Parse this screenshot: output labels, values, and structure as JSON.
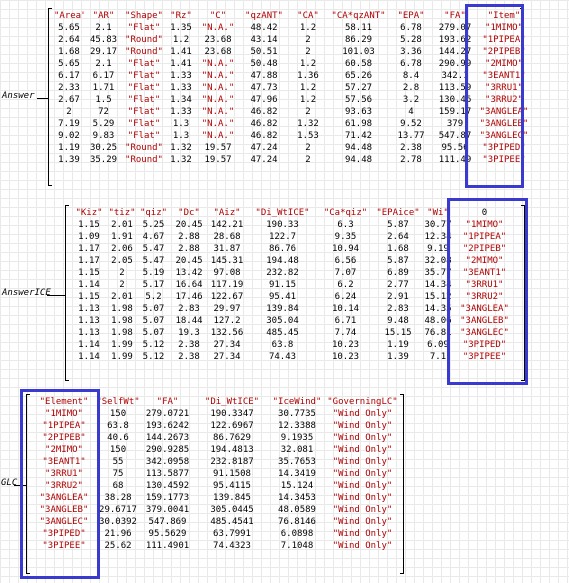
{
  "answer": {
    "label": "Answer",
    "headers": [
      "\"Area\"",
      "\"AR\"",
      "\"Shape\"",
      "\"Rz\"",
      "\"C\"",
      "\"qzANT\"",
      "\"CA\"",
      "\"CA*qzANT\"",
      "\"EPA\"",
      "\"FA\"",
      "\"Item\""
    ],
    "rows": [
      [
        "5.65",
        "2.1",
        "\"Flat\"",
        "1.35",
        "\"N.A.\"",
        "48.42",
        "1.2",
        "58.11",
        "6.78",
        "279.07",
        "\"1MIMO\""
      ],
      [
        "2.64",
        "45.83",
        "\"Round\"",
        "1.2",
        "23.68",
        "43.14",
        "2",
        "86.29",
        "5.28",
        "193.62",
        "\"1PIPEA\""
      ],
      [
        "1.68",
        "29.17",
        "\"Round\"",
        "1.41",
        "23.68",
        "50.51",
        "2",
        "101.03",
        "3.36",
        "144.27",
        "\"2PIPEB\""
      ],
      [
        "5.65",
        "2.1",
        "\"Flat\"",
        "1.41",
        "\"N.A.\"",
        "50.48",
        "1.2",
        "60.58",
        "6.78",
        "290.99",
        "\"2MIMO\""
      ],
      [
        "6.17",
        "6.17",
        "\"Flat\"",
        "1.33",
        "\"N.A.\"",
        "47.88",
        "1.36",
        "65.26",
        "8.4",
        "342.1",
        "\"3EANT1\""
      ],
      [
        "2.33",
        "1.71",
        "\"Flat\"",
        "1.33",
        "\"N.A.\"",
        "47.73",
        "1.2",
        "57.27",
        "2.8",
        "113.59",
        "\"3RRU1\""
      ],
      [
        "2.67",
        "1.5",
        "\"Flat\"",
        "1.34",
        "\"N.A.\"",
        "47.96",
        "1.2",
        "57.56",
        "3.2",
        "130.46",
        "\"3RRU2\""
      ],
      [
        "2",
        "72",
        "\"Flat\"",
        "1.33",
        "\"N.A.\"",
        "46.82",
        "2",
        "93.63",
        "4",
        "159.17",
        "\"3ANGLEA\""
      ],
      [
        "7.19",
        "5.29",
        "\"Flat\"",
        "1.3",
        "\"N.A.\"",
        "46.82",
        "1.32",
        "61.98",
        "9.52",
        "379",
        "\"3ANGLEB\""
      ],
      [
        "9.02",
        "9.83",
        "\"Flat\"",
        "1.3",
        "\"N.A.\"",
        "46.82",
        "1.53",
        "71.42",
        "13.77",
        "547.87",
        "\"3ANGLEC\""
      ],
      [
        "1.19",
        "30.25",
        "\"Round\"",
        "1.32",
        "19.57",
        "47.24",
        "2",
        "94.48",
        "2.38",
        "95.56",
        "\"3PIPED\""
      ],
      [
        "1.39",
        "35.29",
        "\"Round\"",
        "1.32",
        "19.57",
        "47.24",
        "2",
        "94.48",
        "2.78",
        "111.49",
        "\"3PIPEE\""
      ]
    ]
  },
  "answer_ice": {
    "label": "AnswerICE",
    "headers": [
      "\"Kiz\"",
      "\"tiz\"",
      "\"qiz\"",
      "\"Dc\"",
      "\"Aiz\"",
      "\"Di_WtICE\"",
      "\"Ca*qiz\"",
      "\"EPAice\"",
      "\"Wi\"",
      "0"
    ],
    "rows": [
      [
        "1.15",
        "2.01",
        "5.25",
        "20.45",
        "142.21",
        "190.33",
        "6.3",
        "5.87",
        "30.77",
        "\"1MIMO\""
      ],
      [
        "1.09",
        "1.91",
        "4.67",
        "2.88",
        "28.68",
        "122.7",
        "9.35",
        "2.64",
        "12.34",
        "\"1PIPEA\""
      ],
      [
        "1.17",
        "2.06",
        "5.47",
        "2.88",
        "31.87",
        "86.76",
        "10.94",
        "1.68",
        "9.19",
        "\"2PIPEB\""
      ],
      [
        "1.17",
        "2.05",
        "5.47",
        "20.45",
        "145.31",
        "194.48",
        "6.56",
        "5.87",
        "32.08",
        "\"2MIMO\""
      ],
      [
        "1.15",
        "2",
        "5.19",
        "13.42",
        "97.08",
        "232.82",
        "7.07",
        "6.89",
        "35.77",
        "\"3EANT1\""
      ],
      [
        "1.14",
        "2",
        "5.17",
        "16.64",
        "117.19",
        "91.15",
        "6.2",
        "2.77",
        "14.34",
        "\"3RRU1\""
      ],
      [
        "1.15",
        "2.01",
        "5.2",
        "17.46",
        "122.67",
        "95.41",
        "6.24",
        "2.91",
        "15.12",
        "\"3RRU2\""
      ],
      [
        "1.13",
        "1.98",
        "5.07",
        "2.83",
        "29.97",
        "139.84",
        "10.14",
        "2.83",
        "14.35",
        "\"3ANGLEA\""
      ],
      [
        "1.13",
        "1.98",
        "5.07",
        "18.44",
        "127.2",
        "305.04",
        "6.71",
        "9.48",
        "48.06",
        "\"3ANGLEB\""
      ],
      [
        "1.13",
        "1.98",
        "5.07",
        "19.3",
        "132.56",
        "485.45",
        "7.74",
        "15.15",
        "76.81",
        "\"3ANGLEC\""
      ],
      [
        "1.14",
        "1.99",
        "5.12",
        "2.38",
        "27.34",
        "63.8",
        "10.23",
        "1.19",
        "6.09",
        "\"3PIPED\""
      ],
      [
        "1.14",
        "1.99",
        "5.12",
        "2.38",
        "27.34",
        "74.43",
        "10.23",
        "1.39",
        "7.1",
        "\"3PIPEE\""
      ]
    ]
  },
  "glc": {
    "label": "GLC",
    "headers": [
      "\"Element\"",
      "\"SelfWt\"",
      "\"FA\"",
      "\"Di_WtICE\"",
      "\"IceWind\"",
      "\"GoverningLC\""
    ],
    "rows": [
      [
        "\"1MIMO\"",
        "150",
        "279.0721",
        "190.3347",
        "30.7735",
        "\"Wind Only\""
      ],
      [
        "\"1PIPEA\"",
        "63.8",
        "193.6242",
        "122.6967",
        "12.3388",
        "\"Wind Only\""
      ],
      [
        "\"2PIPEB\"",
        "40.6",
        "144.2673",
        "86.7629",
        "9.1935",
        "\"Wind Only\""
      ],
      [
        "\"2MIMO\"",
        "150",
        "290.9285",
        "194.4813",
        "32.081",
        "\"Wind Only\""
      ],
      [
        "\"3EANT1\"",
        "55",
        "342.0958",
        "232.8187",
        "35.7653",
        "\"Wind Only\""
      ],
      [
        "\"3RRU1\"",
        "75",
        "113.5877",
        "91.1508",
        "14.3419",
        "\"Wind Only\""
      ],
      [
        "\"3RRU2\"",
        "68",
        "130.4592",
        "95.4115",
        "15.124",
        "\"Wind Only\""
      ],
      [
        "\"3ANGLEA\"",
        "38.28",
        "159.1773",
        "139.845",
        "14.3453",
        "\"Wind Only\""
      ],
      [
        "\"3ANGLEB\"",
        "29.6717",
        "379.0041",
        "305.0445",
        "48.0589",
        "\"Wind Only\""
      ],
      [
        "\"3ANGLEC\"",
        "30.0392",
        "547.869",
        "485.4541",
        "76.8146",
        "\"Wind Only\""
      ],
      [
        "\"3PIPED\"",
        "21.96",
        "95.5629",
        "63.7991",
        "6.0898",
        "\"Wind Only\""
      ],
      [
        "\"3PIPEE\"",
        "25.62",
        "111.4901",
        "74.4323",
        "7.1048",
        "\"Wind Only\""
      ]
    ]
  }
}
